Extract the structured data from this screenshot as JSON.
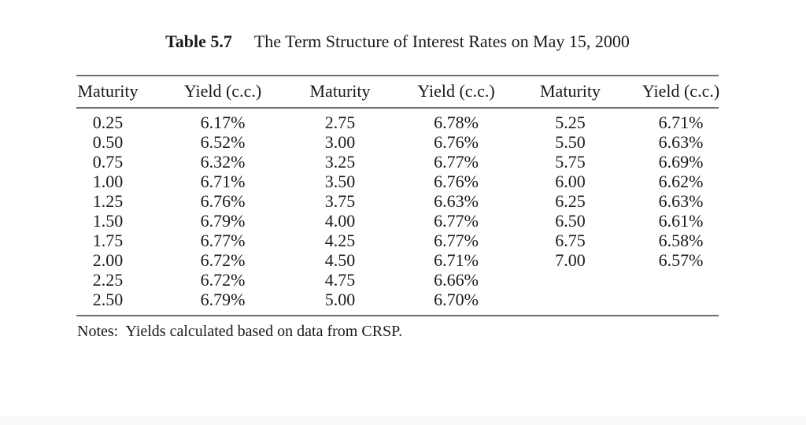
{
  "caption": {
    "label": "Table 5.7",
    "title": "The Term Structure of Interest Rates on May 15, 2000"
  },
  "table": {
    "headers": [
      "Maturity",
      "Yield (c.c.)",
      "Maturity",
      "Yield (c.c.)",
      "Maturity",
      "Yield (c.c.)"
    ],
    "columns": [
      {
        "name": "maturity-block-1",
        "values": [
          "0.25",
          "0.50",
          "0.75",
          "1.00",
          "1.25",
          "1.50",
          "1.75",
          "2.00",
          "2.25",
          "2.50"
        ]
      },
      {
        "name": "yield-block-1",
        "values": [
          "6.17%",
          "6.52%",
          "6.32%",
          "6.71%",
          "6.76%",
          "6.79%",
          "6.77%",
          "6.72%",
          "6.72%",
          "6.79%"
        ]
      },
      {
        "name": "maturity-block-2",
        "values": [
          "2.75",
          "3.00",
          "3.25",
          "3.50",
          "3.75",
          "4.00",
          "4.25",
          "4.50",
          "4.75",
          "5.00"
        ]
      },
      {
        "name": "yield-block-2",
        "values": [
          "6.78%",
          "6.76%",
          "6.77%",
          "6.76%",
          "6.63%",
          "6.77%",
          "6.77%",
          "6.71%",
          "6.66%",
          "6.70%"
        ]
      },
      {
        "name": "maturity-block-3",
        "values": [
          "5.25",
          "5.50",
          "5.75",
          "6.00",
          "6.25",
          "6.50",
          "6.75",
          "7.00"
        ]
      },
      {
        "name": "yield-block-3",
        "values": [
          "6.71%",
          "6.63%",
          "6.69%",
          "6.62%",
          "6.63%",
          "6.61%",
          "6.58%",
          "6.57%"
        ]
      }
    ]
  },
  "notes": "Notes:  Yields calculated based on data from CRSP."
}
